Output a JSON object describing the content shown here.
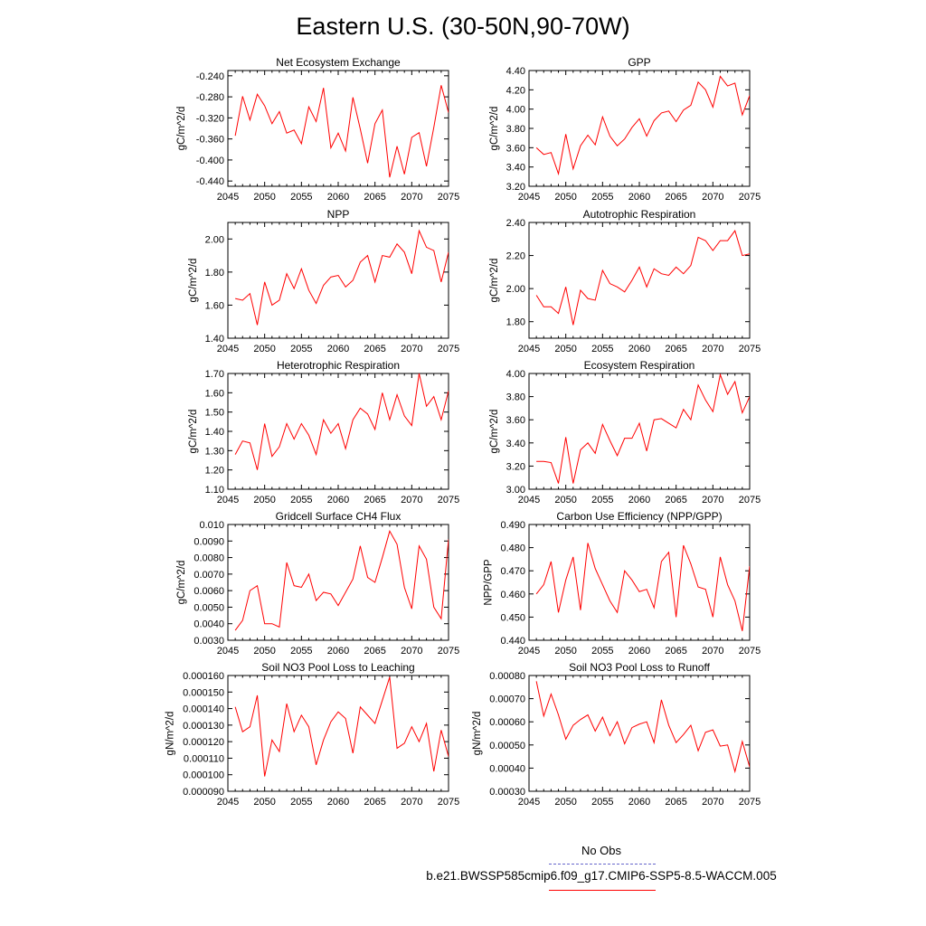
{
  "title": "Eastern U.S. (30-50N,90-70W)",
  "colors": {
    "series": "#ff0000",
    "obs": "#6666cc",
    "axis": "#000000"
  },
  "legend": {
    "obs_label": "No Obs",
    "model_label": "b.e21.BWSSP585cmip6.f09_g17.CMIP6-SSP5-8.5-WACCM.005"
  },
  "chart_data": [
    {
      "type": "line",
      "title": "Net Ecosystem Exchange",
      "ylabel": "gC/m^2/d",
      "xlabel": "",
      "xlim": [
        2045,
        2075
      ],
      "ylim": [
        -0.45,
        -0.23
      ],
      "xticks": [
        2045,
        2050,
        2055,
        2060,
        2065,
        2070,
        2075
      ],
      "yticks": [
        -0.24,
        -0.28,
        -0.32,
        -0.36,
        -0.4,
        -0.44
      ],
      "yticklabels": [
        "-0.240",
        "-0.280",
        "-0.320",
        "-0.360",
        "-0.400",
        "-0.440"
      ],
      "series": [
        {
          "name": "b.e21.BWSSP585cmip6.f09_g17.CMIP6-SSP5-8.5-WACCM.005",
          "x": [
            2046,
            2047,
            2048,
            2049,
            2050,
            2051,
            2052,
            2053,
            2054,
            2055,
            2056,
            2057,
            2058,
            2059,
            2060,
            2061,
            2062,
            2063,
            2064,
            2065,
            2066,
            2067,
            2068,
            2069,
            2070,
            2071,
            2072,
            2073,
            2074,
            2075
          ],
          "values": [
            -0.354,
            -0.279,
            -0.324,
            -0.275,
            -0.297,
            -0.331,
            -0.308,
            -0.349,
            -0.343,
            -0.369,
            -0.299,
            -0.327,
            -0.263,
            -0.377,
            -0.349,
            -0.383,
            -0.281,
            -0.341,
            -0.406,
            -0.331,
            -0.305,
            -0.433,
            -0.374,
            -0.427,
            -0.357,
            -0.348,
            -0.412,
            -0.338,
            -0.258,
            -0.31
          ]
        }
      ]
    },
    {
      "type": "line",
      "title": "GPP",
      "ylabel": "gC/m^2/d",
      "xlabel": "",
      "xlim": [
        2045,
        2075
      ],
      "ylim": [
        3.2,
        4.4
      ],
      "xticks": [
        2045,
        2050,
        2055,
        2060,
        2065,
        2070,
        2075
      ],
      "yticks": [
        3.2,
        3.4,
        3.6,
        3.8,
        4.0,
        4.2,
        4.4
      ],
      "yticklabels": [
        "3.20",
        "3.40",
        "3.60",
        "3.80",
        "4.00",
        "4.20",
        "4.40"
      ],
      "series": [
        {
          "name": "b.e21.BWSSP585cmip6.f09_g17.CMIP6-SSP5-8.5-WACCM.005",
          "x": [
            2046,
            2047,
            2048,
            2049,
            2050,
            2051,
            2052,
            2053,
            2054,
            2055,
            2056,
            2057,
            2058,
            2059,
            2060,
            2061,
            2062,
            2063,
            2064,
            2065,
            2066,
            2067,
            2068,
            2069,
            2070,
            2071,
            2072,
            2073,
            2074,
            2075
          ],
          "values": [
            3.6,
            3.53,
            3.55,
            3.33,
            3.74,
            3.38,
            3.62,
            3.73,
            3.63,
            3.92,
            3.72,
            3.62,
            3.69,
            3.81,
            3.9,
            3.72,
            3.88,
            3.96,
            3.98,
            3.87,
            3.99,
            4.04,
            4.28,
            4.2,
            4.02,
            4.34,
            4.24,
            4.27,
            3.94,
            4.14
          ]
        }
      ]
    },
    {
      "type": "line",
      "title": "NPP",
      "ylabel": "gC/m^2/d",
      "xlabel": "",
      "xlim": [
        2045,
        2075
      ],
      "ylim": [
        1.4,
        2.1
      ],
      "xticks": [
        2045,
        2050,
        2055,
        2060,
        2065,
        2070,
        2075
      ],
      "yticks": [
        1.4,
        1.6,
        1.8,
        2.0
      ],
      "yticklabels": [
        "1.40",
        "1.60",
        "1.80",
        "2.00"
      ],
      "series": [
        {
          "name": "b.e21.BWSSP585cmip6.f09_g17.CMIP6-SSP5-8.5-WACCM.005",
          "x": [
            2046,
            2047,
            2048,
            2049,
            2050,
            2051,
            2052,
            2053,
            2054,
            2055,
            2056,
            2057,
            2058,
            2059,
            2060,
            2061,
            2062,
            2063,
            2064,
            2065,
            2066,
            2067,
            2068,
            2069,
            2070,
            2071,
            2072,
            2073,
            2074,
            2075
          ],
          "values": [
            1.64,
            1.63,
            1.67,
            1.48,
            1.74,
            1.6,
            1.63,
            1.79,
            1.7,
            1.82,
            1.69,
            1.61,
            1.72,
            1.77,
            1.78,
            1.71,
            1.75,
            1.86,
            1.9,
            1.74,
            1.9,
            1.89,
            1.97,
            1.92,
            1.79,
            2.05,
            1.95,
            1.93,
            1.74,
            1.92
          ]
        }
      ]
    },
    {
      "type": "line",
      "title": "Autotrophic Respiration",
      "ylabel": "gC/m^2/d",
      "xlabel": "",
      "xlim": [
        2045,
        2075
      ],
      "ylim": [
        1.7,
        2.4
      ],
      "xticks": [
        2045,
        2050,
        2055,
        2060,
        2065,
        2070,
        2075
      ],
      "yticks": [
        1.8,
        2.0,
        2.2,
        2.4
      ],
      "yticklabels": [
        "1.80",
        "2.00",
        "2.20",
        "2.40"
      ],
      "series": [
        {
          "name": "b.e21.BWSSP585cmip6.f09_g17.CMIP6-SSP5-8.5-WACCM.005",
          "x": [
            2046,
            2047,
            2048,
            2049,
            2050,
            2051,
            2052,
            2053,
            2054,
            2055,
            2056,
            2057,
            2058,
            2059,
            2060,
            2061,
            2062,
            2063,
            2064,
            2065,
            2066,
            2067,
            2068,
            2069,
            2070,
            2071,
            2072,
            2073,
            2074,
            2075
          ],
          "values": [
            1.96,
            1.89,
            1.89,
            1.85,
            2.01,
            1.78,
            1.99,
            1.94,
            1.93,
            2.11,
            2.03,
            2.01,
            1.98,
            2.05,
            2.13,
            2.01,
            2.12,
            2.09,
            2.08,
            2.13,
            2.09,
            2.14,
            2.31,
            2.29,
            2.23,
            2.29,
            2.29,
            2.35,
            2.2,
            2.21
          ]
        }
      ]
    },
    {
      "type": "line",
      "title": "Heterotrophic Respiration",
      "ylabel": "gC/m^2/d",
      "xlabel": "",
      "xlim": [
        2045,
        2075
      ],
      "ylim": [
        1.1,
        1.7
      ],
      "xticks": [
        2045,
        2050,
        2055,
        2060,
        2065,
        2070,
        2075
      ],
      "yticks": [
        1.1,
        1.2,
        1.3,
        1.4,
        1.5,
        1.6,
        1.7
      ],
      "yticklabels": [
        "1.10",
        "1.20",
        "1.30",
        "1.40",
        "1.50",
        "1.60",
        "1.70"
      ],
      "series": [
        {
          "name": "b.e21.BWSSP585cmip6.f09_g17.CMIP6-SSP5-8.5-WACCM.005",
          "x": [
            2046,
            2047,
            2048,
            2049,
            2050,
            2051,
            2052,
            2053,
            2054,
            2055,
            2056,
            2057,
            2058,
            2059,
            2060,
            2061,
            2062,
            2063,
            2064,
            2065,
            2066,
            2067,
            2068,
            2069,
            2070,
            2071,
            2072,
            2073,
            2074,
            2075
          ],
          "values": [
            1.28,
            1.35,
            1.34,
            1.2,
            1.44,
            1.27,
            1.32,
            1.44,
            1.36,
            1.44,
            1.38,
            1.28,
            1.46,
            1.39,
            1.44,
            1.31,
            1.46,
            1.52,
            1.49,
            1.41,
            1.6,
            1.46,
            1.59,
            1.48,
            1.43,
            1.7,
            1.53,
            1.58,
            1.46,
            1.61
          ]
        }
      ]
    },
    {
      "type": "line",
      "title": "Ecosystem Respiration",
      "ylabel": "gC/m^2/d",
      "xlabel": "",
      "xlim": [
        2045,
        2075
      ],
      "ylim": [
        3.0,
        4.0
      ],
      "xticks": [
        2045,
        2050,
        2055,
        2060,
        2065,
        2070,
        2075
      ],
      "yticks": [
        3.0,
        3.2,
        3.4,
        3.6,
        3.8,
        4.0
      ],
      "yticklabels": [
        "3.00",
        "3.20",
        "3.40",
        "3.60",
        "3.80",
        "4.00"
      ],
      "series": [
        {
          "name": "b.e21.BWSSP585cmip6.f09_g17.CMIP6-SSP5-8.5-WACCM.005",
          "x": [
            2046,
            2047,
            2048,
            2049,
            2050,
            2051,
            2052,
            2053,
            2054,
            2055,
            2056,
            2057,
            2058,
            2059,
            2060,
            2061,
            2062,
            2063,
            2064,
            2065,
            2066,
            2067,
            2068,
            2069,
            2070,
            2071,
            2072,
            2073,
            2074,
            2075
          ],
          "values": [
            3.24,
            3.24,
            3.23,
            3.05,
            3.45,
            3.05,
            3.34,
            3.4,
            3.31,
            3.56,
            3.42,
            3.29,
            3.44,
            3.44,
            3.57,
            3.33,
            3.6,
            3.61,
            3.57,
            3.53,
            3.69,
            3.6,
            3.9,
            3.77,
            3.67,
            3.99,
            3.82,
            3.93,
            3.66,
            3.8
          ]
        }
      ]
    },
    {
      "type": "line",
      "title": "Gridcell Surface CH4 Flux",
      "ylabel": "gC/m^2/d",
      "xlabel": "",
      "xlim": [
        2045,
        2075
      ],
      "ylim": [
        0.003,
        0.01
      ],
      "xticks": [
        2045,
        2050,
        2055,
        2060,
        2065,
        2070,
        2075
      ],
      "yticks": [
        0.003,
        0.004,
        0.005,
        0.006,
        0.007,
        0.008,
        0.009,
        0.01
      ],
      "yticklabels": [
        "0.0030",
        "0.0040",
        "0.0050",
        "0.0060",
        "0.0070",
        "0.0080",
        "0.0090",
        "0.010"
      ],
      "series": [
        {
          "name": "b.e21.BWSSP585cmip6.f09_g17.CMIP6-SSP5-8.5-WACCM.005",
          "x": [
            2046,
            2047,
            2048,
            2049,
            2050,
            2051,
            2052,
            2053,
            2054,
            2055,
            2056,
            2057,
            2058,
            2059,
            2060,
            2061,
            2062,
            2063,
            2064,
            2065,
            2066,
            2067,
            2068,
            2069,
            2070,
            2071,
            2072,
            2073,
            2074,
            2075
          ],
          "values": [
            0.0036,
            0.0042,
            0.006,
            0.0063,
            0.004,
            0.004,
            0.0038,
            0.0077,
            0.0063,
            0.0062,
            0.007,
            0.0054,
            0.0059,
            0.0058,
            0.0051,
            0.0059,
            0.0067,
            0.0087,
            0.0068,
            0.0065,
            0.008,
            0.0096,
            0.0088,
            0.0062,
            0.0049,
            0.0087,
            0.0079,
            0.005,
            0.0043,
            0.0091
          ]
        }
      ]
    },
    {
      "type": "line",
      "title": "Carbon Use Efficiency (NPP/GPP)",
      "ylabel": "NPP/GPP",
      "xlabel": "",
      "xlim": [
        2045,
        2075
      ],
      "ylim": [
        0.44,
        0.49
      ],
      "xticks": [
        2045,
        2050,
        2055,
        2060,
        2065,
        2070,
        2075
      ],
      "yticks": [
        0.44,
        0.45,
        0.46,
        0.47,
        0.48,
        0.49
      ],
      "yticklabels": [
        "0.440",
        "0.450",
        "0.460",
        "0.470",
        "0.480",
        "0.490"
      ],
      "series": [
        {
          "name": "b.e21.BWSSP585cmip6.f09_g17.CMIP6-SSP5-8.5-WACCM.005",
          "x": [
            2046,
            2047,
            2048,
            2049,
            2050,
            2051,
            2052,
            2053,
            2054,
            2055,
            2056,
            2057,
            2058,
            2059,
            2060,
            2061,
            2062,
            2063,
            2064,
            2065,
            2066,
            2067,
            2068,
            2069,
            2070,
            2071,
            2072,
            2073,
            2074,
            2075
          ],
          "values": [
            0.46,
            0.464,
            0.474,
            0.452,
            0.466,
            0.476,
            0.453,
            0.482,
            0.471,
            0.464,
            0.457,
            0.452,
            0.47,
            0.466,
            0.461,
            0.462,
            0.454,
            0.474,
            0.478,
            0.45,
            0.481,
            0.473,
            0.463,
            0.462,
            0.45,
            0.476,
            0.464,
            0.457,
            0.444,
            0.472
          ]
        }
      ]
    },
    {
      "type": "line",
      "title": "Soil NO3 Pool Loss to Leaching",
      "ylabel": "gN/m^2/d",
      "xlabel": "",
      "xlim": [
        2045,
        2075
      ],
      "ylim": [
        9e-05,
        0.00016
      ],
      "xticks": [
        2045,
        2050,
        2055,
        2060,
        2065,
        2070,
        2075
      ],
      "yticks": [
        9e-05,
        0.0001,
        0.00011,
        0.00012,
        0.00013,
        0.00014,
        0.00015,
        0.00016
      ],
      "yticklabels": [
        "0.000090",
        "0.000100",
        "0.000110",
        "0.000120",
        "0.000130",
        "0.000140",
        "0.000150",
        "0.000160"
      ],
      "series": [
        {
          "name": "b.e21.BWSSP585cmip6.f09_g17.CMIP6-SSP5-8.5-WACCM.005",
          "x": [
            2046,
            2047,
            2048,
            2049,
            2050,
            2051,
            2052,
            2053,
            2054,
            2055,
            2056,
            2057,
            2058,
            2059,
            2060,
            2061,
            2062,
            2063,
            2064,
            2065,
            2066,
            2067,
            2068,
            2069,
            2070,
            2071,
            2072,
            2073,
            2074,
            2075
          ],
          "values": [
            0.000141,
            0.000126,
            0.000129,
            0.000148,
            9.9e-05,
            0.000121,
            0.000114,
            0.000143,
            0.000126,
            0.000136,
            0.000129,
            0.000106,
            0.000121,
            0.000132,
            0.000138,
            0.000134,
            0.000113,
            0.000141,
            0.000136,
            0.000131,
            0.000145,
            0.000159,
            0.000116,
            0.000119,
            0.000129,
            0.00012,
            0.000131,
            0.000102,
            0.000127,
            0.000111
          ]
        }
      ]
    },
    {
      "type": "line",
      "title": "Soil NO3 Pool Loss to Runoff",
      "ylabel": "gN/m^2/d",
      "xlabel": "",
      "xlim": [
        2045,
        2075
      ],
      "ylim": [
        0.0003,
        0.0008
      ],
      "xticks": [
        2045,
        2050,
        2055,
        2060,
        2065,
        2070,
        2075
      ],
      "yticks": [
        0.0003,
        0.0004,
        0.0005,
        0.0006,
        0.0007,
        0.0008
      ],
      "yticklabels": [
        "0.00030",
        "0.00040",
        "0.00050",
        "0.00060",
        "0.00070",
        "0.00080"
      ],
      "series": [
        {
          "name": "b.e21.BWSSP585cmip6.f09_g17.CMIP6-SSP5-8.5-WACCM.005",
          "x": [
            2046,
            2047,
            2048,
            2049,
            2050,
            2051,
            2052,
            2053,
            2054,
            2055,
            2056,
            2057,
            2058,
            2059,
            2060,
            2061,
            2062,
            2063,
            2064,
            2065,
            2066,
            2067,
            2068,
            2069,
            2070,
            2071,
            2072,
            2073,
            2074,
            2075
          ],
          "values": [
            0.000775,
            0.000625,
            0.00072,
            0.00063,
            0.000525,
            0.000585,
            0.00061,
            0.00063,
            0.00056,
            0.00062,
            0.00054,
            0.0006,
            0.000505,
            0.000575,
            0.00059,
            0.0006,
            0.00051,
            0.000695,
            0.000585,
            0.00051,
            0.000545,
            0.000585,
            0.000475,
            0.000555,
            0.000565,
            0.000495,
            0.0005,
            0.000385,
            0.000515,
            0.000405
          ]
        }
      ]
    }
  ]
}
